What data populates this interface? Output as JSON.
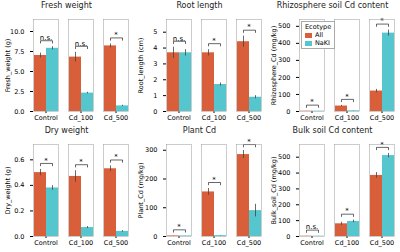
{
  "chart_data": [
    {
      "type": "bar",
      "title": "Fresh weight",
      "ylabel": "Fresh_weight (g)",
      "categories": [
        "Control",
        "Cd_100",
        "Cd_500"
      ],
      "series": [
        {
          "name": "All",
          "color": "#D95F3B",
          "values": [
            7.0,
            6.8,
            8.2
          ],
          "errors": [
            0.3,
            0.6,
            0.25
          ]
        },
        {
          "name": "NaKI",
          "color": "#55C5CE",
          "values": [
            7.9,
            2.3,
            0.7
          ],
          "errors": [
            0.2,
            0.1,
            0.08
          ]
        }
      ],
      "annotations": [
        "n.s.",
        "n.s.",
        "*"
      ],
      "ylim": [
        0,
        11.5
      ],
      "yticks": [
        {
          "value": 0,
          "label": "0.0"
        },
        2.5,
        {
          "value": 5.0,
          "label": "5.0"
        },
        7.5,
        {
          "value": 10.0,
          "label": "10.0"
        }
      ]
    },
    {
      "type": "bar",
      "title": "Root length",
      "ylabel": "Root_length (cm)",
      "categories": [
        "Control",
        "Cd_100",
        "Cd_500"
      ],
      "series": [
        {
          "name": "All",
          "color": "#D95F3B",
          "values": [
            3.7,
            3.7,
            4.4
          ],
          "errors": [
            0.35,
            0.2,
            0.35
          ]
        },
        {
          "name": "NaKI",
          "color": "#55C5CE",
          "values": [
            3.7,
            1.7,
            0.9
          ],
          "errors": [
            0.2,
            0.1,
            0.1
          ]
        }
      ],
      "annotations": [
        "n.s.",
        "*",
        "*"
      ],
      "ylim": [
        0,
        5.8
      ],
      "yticks": [
        0,
        1,
        2,
        3,
        4,
        5
      ]
    },
    {
      "type": "bar",
      "title": "Rhizosphere soil Cd content",
      "ylabel": "Rhizosphere_Cd (mg/kg)",
      "categories": [
        "Control",
        "Cd_100",
        "Cd_500"
      ],
      "series": [
        {
          "name": "All",
          "color": "#D95F3B",
          "values": [
            2,
            32,
            120
          ],
          "errors": [
            0.3,
            4,
            10
          ]
        },
        {
          "name": "NaKI",
          "color": "#55C5CE",
          "values": [
            2,
            4,
            460
          ],
          "errors": [
            0.3,
            1,
            18
          ]
        }
      ],
      "annotations": [
        "*",
        "*",
        "*"
      ],
      "ylim": [
        0,
        540
      ],
      "yticks": [
        0,
        100,
        200,
        300,
        400,
        500
      ],
      "legend": "upper left",
      "legend_title": "Ecotype"
    },
    {
      "type": "bar",
      "title": "Dry weight",
      "ylabel": "Dry_weight (g)",
      "categories": [
        "Control",
        "Cd_100",
        "Cd_500"
      ],
      "series": [
        {
          "name": "All",
          "color": "#D95F3B",
          "values": [
            0.5,
            0.47,
            0.53
          ],
          "errors": [
            0.025,
            0.045,
            0.022
          ]
        },
        {
          "name": "NaKI",
          "color": "#55C5CE",
          "values": [
            0.38,
            0.07,
            0.04
          ],
          "errors": [
            0.018,
            0.008,
            0.006
          ]
        }
      ],
      "annotations": [
        "*",
        "*",
        "*"
      ],
      "ylim": [
        0,
        0.72
      ],
      "yticks": [
        {
          "value": 0.0,
          "label": "0.0"
        },
        0.2,
        0.4,
        0.6
      ]
    },
    {
      "type": "bar",
      "title": "Plant Cd",
      "ylabel": "Plant_Cd (mg/kg)",
      "categories": [
        "Control",
        "Cd_100",
        "Cd_500"
      ],
      "series": [
        {
          "name": "All",
          "color": "#D95F3B",
          "values": [
            2,
            155,
            285
          ],
          "errors": [
            0.4,
            12,
            14
          ]
        },
        {
          "name": "NaKI",
          "color": "#55C5CE",
          "values": [
            2,
            3,
            90
          ],
          "errors": [
            0.3,
            0.8,
            22
          ]
        }
      ],
      "annotations": [
        "*",
        "*",
        "*"
      ],
      "ylim": [
        0,
        320
      ],
      "yticks": [
        0,
        100,
        200,
        300
      ]
    },
    {
      "type": "bar",
      "title": "Bulk soil Cd content",
      "ylabel": "Bulk_soil_Cd (mg/kg)",
      "categories": [
        "Control",
        "Cd_100",
        "Cd_500"
      ],
      "series": [
        {
          "name": "All",
          "color": "#D95F3B",
          "values": [
            2,
            80,
            385
          ],
          "errors": [
            0.4,
            10,
            18
          ]
        },
        {
          "name": "NaKI",
          "color": "#55C5CE",
          "values": [
            2,
            95,
            510
          ],
          "errors": [
            0.4,
            8,
            14
          ]
        }
      ],
      "annotations": [
        "n.s.",
        "*",
        "*"
      ],
      "ylim": [
        0,
        580
      ],
      "yticks": [
        0,
        100,
        200,
        300,
        400,
        500
      ]
    }
  ]
}
